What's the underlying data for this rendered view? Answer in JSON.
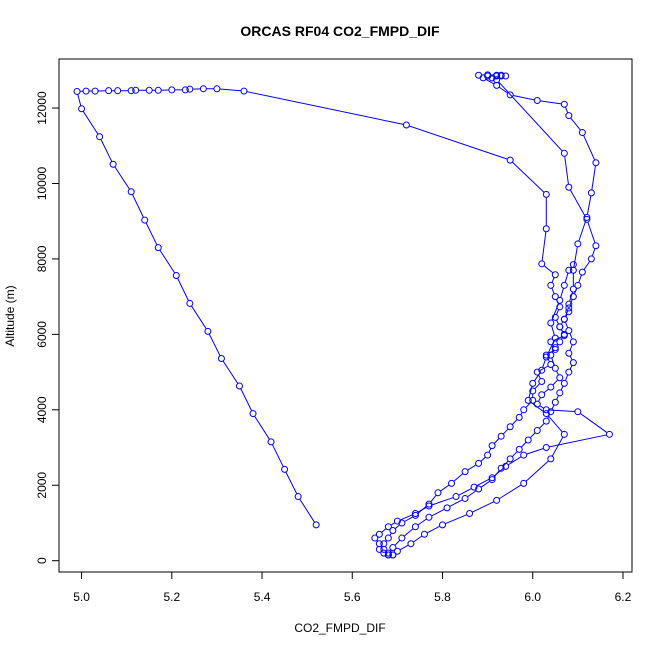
{
  "chart_data": {
    "type": "line",
    "title": "ORCAS RF04 CO2_FMPD_DIF",
    "xlabel": "CO2_FMPD_DIF",
    "ylabel": "Altitude (m)",
    "xlim": [
      4.95,
      6.22
    ],
    "ylim": [
      -300,
      13300
    ],
    "xticks": [
      5.0,
      5.2,
      5.4,
      5.6,
      5.8,
      6.0,
      6.2
    ],
    "xtick_labels": [
      "5.0",
      "5.2",
      "5.4",
      "5.6",
      "5.8",
      "6.0",
      "6.2"
    ],
    "yticks": [
      0,
      2000,
      4000,
      6000,
      8000,
      10000,
      12000
    ],
    "ytick_labels": [
      "0",
      "2000",
      "4000",
      "6000",
      "8000",
      "10000",
      "12000"
    ],
    "color": "#0000ff",
    "marker": "open-circle",
    "grid": false,
    "series": [
      {
        "x": [
          5.52,
          5.48,
          5.45,
          5.42,
          5.38,
          5.35,
          5.31,
          5.28,
          5.24,
          5.21,
          5.17,
          5.14,
          5.11,
          5.07,
          5.04,
          5.0,
          4.99,
          5.01,
          5.03,
          5.06,
          5.08,
          5.11,
          5.12,
          5.15,
          5.17,
          5.2,
          5.23,
          5.24,
          5.27,
          5.3,
          5.36,
          5.72,
          5.95,
          6.03,
          6.03,
          6.02,
          6.05,
          6.04,
          6.05,
          6.06,
          6.05,
          6.06,
          6.07,
          6.04,
          6.05,
          6.03,
          6.04,
          6.01,
          6.02,
          6.0,
          6.0,
          5.98,
          5.97,
          5.95,
          5.93,
          5.91,
          5.9,
          5.88,
          5.85,
          5.82,
          5.79,
          5.77,
          5.74,
          5.71,
          5.69,
          5.68,
          5.67,
          5.66,
          5.67,
          5.68
        ],
        "y": [
          950,
          1700,
          2420,
          3150,
          3900,
          4630,
          5360,
          6080,
          6820,
          7560,
          8300,
          9030,
          9780,
          10510,
          11240,
          11980,
          12440,
          12450,
          12450,
          12460,
          12460,
          12460,
          12470,
          12470,
          12470,
          12480,
          12480,
          12500,
          12510,
          12510,
          12450,
          11550,
          10620,
          9710,
          8800,
          7870,
          7580,
          7300,
          7000,
          6730,
          6450,
          6200,
          5970,
          5800,
          5600,
          5450,
          5200,
          5000,
          4750,
          4500,
          4250,
          4000,
          3800,
          3550,
          3300,
          3050,
          2800,
          2580,
          2360,
          2050,
          1800,
          1500,
          1200,
          1000,
          800,
          600,
          450,
          300,
          200,
          150
        ]
      },
      {
        "x": [
          5.68,
          5.69,
          5.71,
          5.74,
          5.77,
          5.81,
          5.85,
          5.88,
          5.91,
          5.93,
          5.95,
          5.97,
          5.99,
          6.01,
          6.03,
          6.04,
          6.05,
          6.06,
          6.07,
          6.08,
          6.09,
          6.08,
          6.09,
          6.08,
          6.07,
          6.08,
          6.09,
          6.1,
          6.11,
          6.13,
          6.14,
          6.12,
          6.08,
          6.07,
          5.92,
          5.91,
          5.9,
          5.92,
          5.93,
          5.94,
          5.93,
          5.92,
          5.9,
          5.88
        ],
        "y": [
          150,
          350,
          600,
          900,
          1150,
          1400,
          1650,
          1900,
          2150,
          2450,
          2700,
          2950,
          3200,
          3450,
          3700,
          3950,
          4200,
          4450,
          4700,
          5000,
          5250,
          5500,
          5800,
          6100,
          6400,
          6700,
          7000,
          7300,
          7650,
          8000,
          8350,
          9050,
          9900,
          10800,
          12750,
          12800,
          12850,
          12850,
          12850,
          12850,
          12870,
          12870,
          12880,
          12870
        ]
      },
      {
        "x": [
          5.89,
          5.92,
          5.95,
          6.01,
          6.07,
          6.08,
          6.11,
          6.14,
          6.13,
          6.12,
          6.1,
          6.09,
          6.09,
          6.08,
          6.08,
          6.07,
          6.06,
          6.07,
          6.06,
          6.05,
          6.04,
          6.05,
          6.06,
          6.04,
          6.02,
          6.01,
          6.03,
          6.1,
          6.17,
          6.03,
          5.98,
          5.94,
          5.91,
          5.87,
          5.83,
          5.77,
          5.74,
          5.7,
          5.68,
          5.66,
          5.65,
          5.66,
          5.67,
          5.68,
          5.69
        ],
        "y": [
          12800,
          12600,
          12350,
          12200,
          12100,
          11800,
          11350,
          10550,
          9750,
          9100,
          8400,
          7700,
          7200,
          6800,
          6600,
          6400,
          6200,
          6000,
          5800,
          5650,
          5450,
          5100,
          4850,
          4600,
          4400,
          4150,
          4000,
          3950,
          3350,
          3000,
          2800,
          2500,
          2200,
          1950,
          1700,
          1450,
          1250,
          1050,
          900,
          700,
          600,
          450,
          300,
          200,
          150
        ]
      },
      {
        "x": [
          5.69,
          5.7,
          5.73,
          5.76,
          5.8,
          5.86,
          5.92,
          5.98,
          6.04,
          6.07,
          6.03,
          5.99,
          6.0,
          6.02,
          6.03,
          6.05,
          6.04,
          6.06,
          6.07,
          6.08,
          6.09
        ],
        "y": [
          150,
          250,
          450,
          700,
          950,
          1250,
          1600,
          2050,
          2700,
          3350,
          3900,
          4250,
          4700,
          5050,
          5400,
          5900,
          6300,
          6900,
          7300,
          7700,
          7850
        ]
      }
    ]
  }
}
